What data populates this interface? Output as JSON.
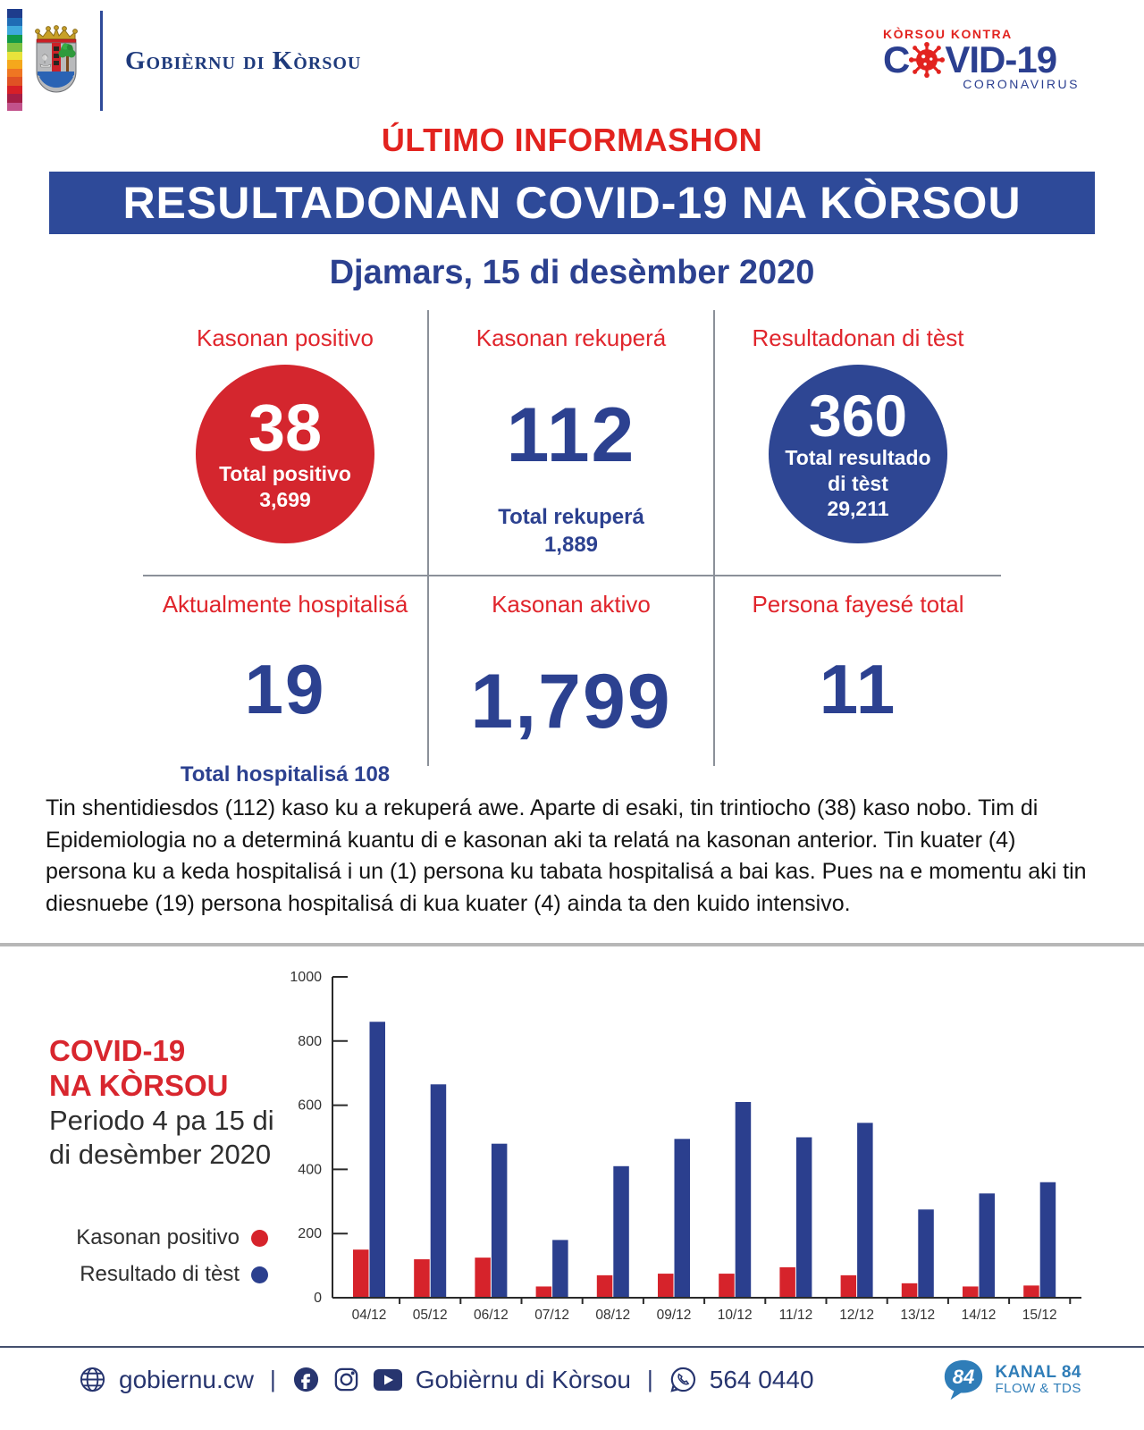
{
  "header": {
    "gov_name": "Gobièrnu di Kòrsou",
    "covid_logo": {
      "top": "KÒRSOU KONTRA",
      "main_prefix": "C",
      "main_suffix": "VID-19",
      "sub": "CORONAVIRUS"
    }
  },
  "title": "ÚLTIMO INFORMASHON",
  "banner": "RESULTADONAN COVID-19 NA KÒRSOU",
  "dateline": "Djamars, 15 di desèmber 2020",
  "stats": {
    "positivo": {
      "label": "Kasonan positivo",
      "value": "38",
      "total_label": "Total positivo",
      "total_value": "3,699"
    },
    "rekupera": {
      "label": "Kasonan rekuperá",
      "value": "112",
      "total_label": "Total rekuperá",
      "total_value": "1,889"
    },
    "test": {
      "label": "Resultadonan di tèst",
      "value": "360",
      "total_label_1": "Total resultado",
      "total_label_2": "di tèst",
      "total_value": "29,211"
    },
    "hospital": {
      "label": "Aktualmente hospitalisá",
      "value": "19",
      "total_label": "Total hospitalisá 108"
    },
    "aktivo": {
      "label": "Kasonan aktivo",
      "value": "1,799"
    },
    "fayese": {
      "label": "Persona fayesé total",
      "value": "11"
    }
  },
  "paragraph": "Tin shentidiesdos (112) kaso ku a rekuperá awe. Aparte di esaki, tin trintiocho (38) kaso nobo. Tim di Epidemiologia no a determiná kuantu di e kasonan aki ta relatá na kasonan anterior. Tin kuater (4) persona ku a keda hospitalisá i un (1) persona ku tabata hospitalisá a bai kas. Pues na e momentu aki tin diesnuebe (19) persona hospitalisá di kua kuater (4) ainda ta den kuido intensivo.",
  "chart_section": {
    "title_line1": "COVID-19",
    "title_line2": "NA KÒRSOU",
    "subtitle_line1": "Periodo 4 pa 15 di",
    "subtitle_line2": "di desèmber 2020"
  },
  "chart_data": {
    "type": "bar",
    "title": "COVID-19 NA KÒRSOU — Periodo 4 pa 15 di desèmber 2020",
    "categories": [
      "04/12",
      "05/12",
      "06/12",
      "07/12",
      "08/12",
      "09/12",
      "10/12",
      "11/12",
      "12/12",
      "13/12",
      "14/12",
      "15/12"
    ],
    "series": [
      {
        "name": "Kasonan positivo",
        "color": "#d6232b",
        "values": [
          150,
          120,
          125,
          35,
          70,
          75,
          75,
          95,
          70,
          45,
          35,
          38
        ]
      },
      {
        "name": "Resultado di tèst",
        "color": "#2b3f8e",
        "values": [
          860,
          665,
          480,
          180,
          410,
          495,
          610,
          500,
          545,
          275,
          325,
          360
        ]
      }
    ],
    "xlabel": "",
    "ylabel": "",
    "ylim": [
      0,
      1000
    ],
    "yticks": [
      0,
      200,
      400,
      600,
      800,
      1000
    ],
    "grid": false,
    "legend_position": "left"
  },
  "footer": {
    "website": "gobiernu.cw",
    "social_name": "Gobièrnu di Kòrsou",
    "phone": "564 0440",
    "kanal": {
      "bubble": "84",
      "line1": "KANAL 84",
      "line2": "FLOW & TDS"
    }
  },
  "colors": {
    "accent_red": "#d6232b",
    "accent_blue": "#2e4a99",
    "number_blue": "#2c4190",
    "footer_navy": "#27356f",
    "kanal_blue": "#2f7db8",
    "rainbow": [
      "#1e3c8c",
      "#1f6cb5",
      "#3fa9dc",
      "#129a48",
      "#7dc243",
      "#e8e33b",
      "#f5a81c",
      "#ef7622",
      "#e05224",
      "#d71f27",
      "#a51e46",
      "#c2528b"
    ]
  }
}
